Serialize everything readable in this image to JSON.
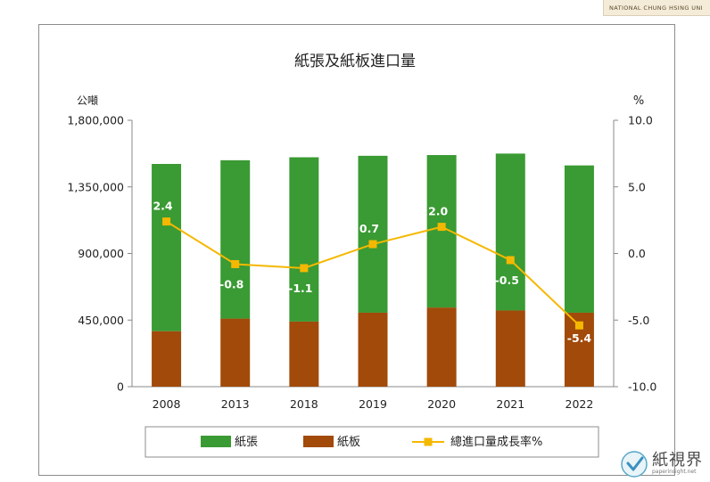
{
  "banner": {
    "text": "NATIONAL CHUNG HSING UNI"
  },
  "watermark": {
    "logo": "paperinsight-logo-icon",
    "title": "紙視界",
    "url": "paperinsight.net"
  },
  "chart_data": {
    "type": "bar+line",
    "title": "紙張及紙板進口量",
    "y_left_unit": "公噸",
    "y_right_unit": "%",
    "categories": [
      "2008",
      "2013",
      "2018",
      "2019",
      "2020",
      "2021",
      "2022"
    ],
    "series": [
      {
        "name": "紙張",
        "type": "bar",
        "stack": "total",
        "color": "#3a9a33",
        "values": [
          1130000,
          1070000,
          1110000,
          1060000,
          1030000,
          1060000,
          995000
        ]
      },
      {
        "name": "紙板",
        "type": "bar",
        "stack": "total",
        "color": "#a14a0a",
        "values": [
          375000,
          460000,
          440000,
          500000,
          535000,
          515000,
          500000
        ]
      },
      {
        "name": "總進口量成長率%",
        "type": "line",
        "axis": "right",
        "color": "#f5b800",
        "values": [
          2.4,
          -0.8,
          -1.1,
          0.7,
          2.0,
          -0.5,
          -5.4
        ],
        "labels": [
          "2.4",
          "-0.8",
          "-1.1",
          "0.7",
          "2.0",
          "-0.5",
          "-5.4"
        ]
      }
    ],
    "y_left": {
      "range": [
        0,
        1800000
      ],
      "ticks": [
        "0",
        "450,000",
        "900,000",
        "1,350,000",
        "1,800,000"
      ]
    },
    "y_right": {
      "range": [
        -10,
        10
      ],
      "ticks": [
        "-10.0",
        "-5.0",
        "0.0",
        "5.0",
        "10.0"
      ]
    },
    "grid": false,
    "legend_position": "bottom"
  }
}
